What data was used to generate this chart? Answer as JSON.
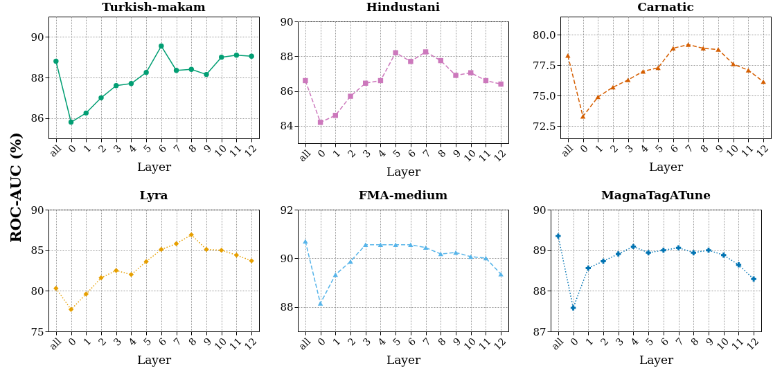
{
  "chart_data": [
    {
      "type": "line",
      "title": "Turkish-makam",
      "xlabel": "Layer",
      "ylabel": "ROC-AUC (%)",
      "categories": [
        "all",
        "0",
        "1",
        "2",
        "3",
        "4",
        "5",
        "6",
        "7",
        "8",
        "9",
        "10",
        "11",
        "12"
      ],
      "marker": "circle",
      "line_style": "solid",
      "grid": true,
      "ylim": [
        85,
        91
      ],
      "yticks": [
        86,
        88,
        90
      ],
      "series": [
        {
          "color": "#029e73",
          "values": [
            88.8,
            85.8,
            86.25,
            87.0,
            87.6,
            87.7,
            88.25,
            89.55,
            88.35,
            88.4,
            88.15,
            89.0,
            89.1,
            89.05
          ]
        }
      ]
    },
    {
      "type": "line",
      "title": "Hindustani",
      "xlabel": "Layer",
      "categories": [
        "all",
        "0",
        "1",
        "2",
        "3",
        "4",
        "5",
        "6",
        "7",
        "8",
        "9",
        "10",
        "11",
        "12"
      ],
      "marker": "square",
      "line_style": "dashed",
      "grid": true,
      "ylim": [
        83,
        90
      ],
      "yticks": [
        84,
        86,
        88,
        90
      ],
      "series": [
        {
          "color": "#cc78bc",
          "values": [
            86.6,
            84.2,
            84.6,
            85.7,
            86.45,
            86.6,
            88.2,
            87.7,
            88.25,
            87.75,
            86.9,
            87.05,
            86.6,
            86.4
          ]
        }
      ]
    },
    {
      "type": "line",
      "title": "Carnatic",
      "xlabel": "Layer",
      "categories": [
        "all",
        "0",
        "1",
        "2",
        "3",
        "4",
        "5",
        "6",
        "7",
        "8",
        "9",
        "10",
        "11",
        "12"
      ],
      "marker": "triangle",
      "line_style": "dashed",
      "grid": true,
      "ylim": [
        71.5,
        81.5
      ],
      "yticks": [
        {
          "value": 72.5,
          "label": "72.5"
        },
        {
          "value": 75,
          "label": "75.0"
        },
        {
          "value": 77.5,
          "label": "77.5"
        },
        {
          "value": 80,
          "label": "80.0"
        }
      ],
      "series": [
        {
          "color": "#d55e00",
          "values": [
            78.3,
            73.3,
            74.9,
            75.7,
            76.3,
            77.0,
            77.3,
            78.9,
            79.2,
            78.9,
            78.8,
            77.6,
            77.1,
            76.15
          ]
        }
      ]
    },
    {
      "type": "line",
      "title": "Lyra",
      "xlabel": "Layer",
      "categories": [
        "all",
        "0",
        "1",
        "2",
        "3",
        "4",
        "5",
        "6",
        "7",
        "8",
        "9",
        "10",
        "11",
        "12"
      ],
      "marker": "diamond",
      "line_style": "dotted",
      "grid": true,
      "ylim": [
        75,
        90
      ],
      "yticks": [
        75,
        80,
        85,
        90
      ],
      "series": [
        {
          "color": "#e69f00",
          "values": [
            80.3,
            77.7,
            79.6,
            81.6,
            82.5,
            82.0,
            83.6,
            85.1,
            85.8,
            86.9,
            85.1,
            85.0,
            84.4,
            83.7
          ]
        }
      ]
    },
    {
      "type": "line",
      "title": "FMA-medium",
      "xlabel": "Layer",
      "categories": [
        "all",
        "0",
        "1",
        "2",
        "3",
        "4",
        "5",
        "6",
        "7",
        "8",
        "9",
        "10",
        "11",
        "12"
      ],
      "marker": "triangle",
      "line_style": "dashed",
      "grid": true,
      "ylim": [
        87,
        92
      ],
      "yticks": [
        88,
        90,
        92
      ],
      "series": [
        {
          "color": "#56b4e9",
          "values": [
            90.7,
            88.15,
            89.33,
            89.87,
            90.56,
            90.56,
            90.56,
            90.56,
            90.44,
            90.18,
            90.24,
            90.07,
            90.01,
            89.35
          ]
        }
      ]
    },
    {
      "type": "line",
      "title": "MagnaTagATune",
      "xlabel": "Layer",
      "categories": [
        "all",
        "0",
        "1",
        "2",
        "3",
        "4",
        "5",
        "6",
        "7",
        "8",
        "9",
        "10",
        "11",
        "12"
      ],
      "marker": "cross",
      "line_style": "dotted",
      "grid": true,
      "ylim": [
        87,
        90
      ],
      "yticks": [
        87,
        88,
        89,
        90
      ],
      "series": [
        {
          "color": "#0173b2",
          "values": [
            89.35,
            87.58,
            88.56,
            88.73,
            88.91,
            89.09,
            88.94,
            89.0,
            89.06,
            88.94,
            89.0,
            88.88,
            88.64,
            88.29
          ]
        }
      ]
    }
  ]
}
